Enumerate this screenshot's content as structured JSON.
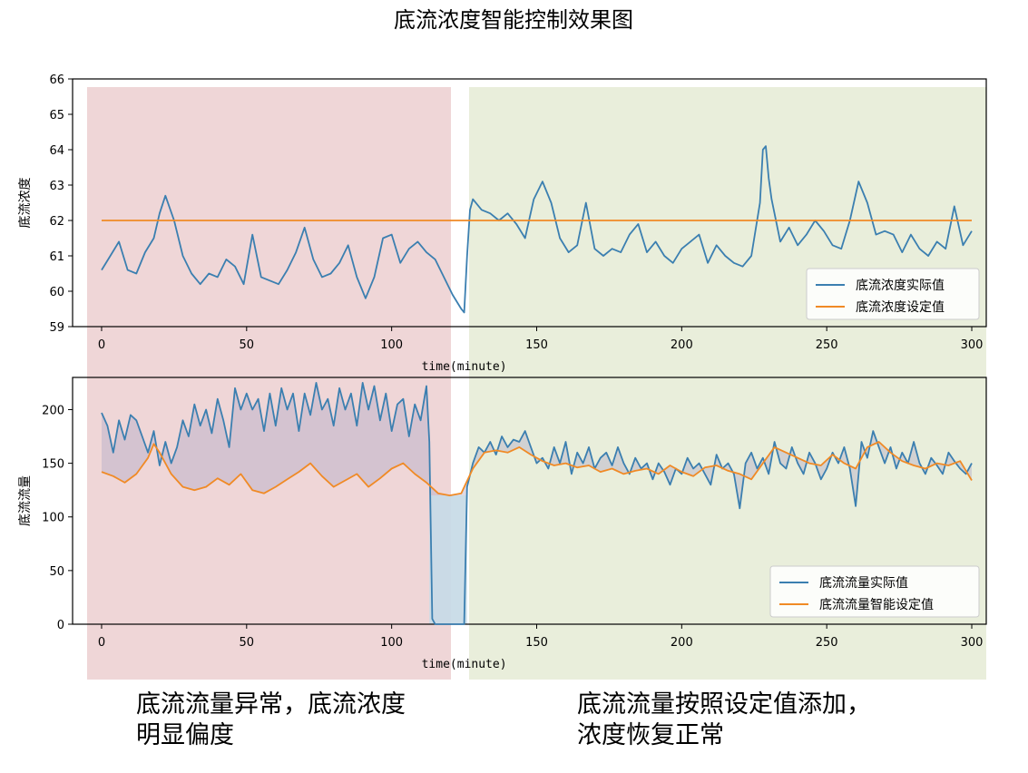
{
  "title": "底流浓度智能控制效果图",
  "captions": {
    "left_line1": "底流流量异常，底流浓度",
    "left_line2": "明显偏度",
    "right_line1": "底流流量按照设定值添加，",
    "right_line2": "浓度恢复正常"
  },
  "colors": {
    "actual": "#3b7fb0",
    "setpoint": "#f08a25",
    "region_left": "#efd6d7",
    "region_right": "#e9eedb",
    "fill_diff": "#b3adc8",
    "fill_drop": "#c9dde8"
  },
  "chart_data": [
    {
      "type": "line",
      "ylabel": "底流浓度",
      "xlabel": "time(minute)",
      "xlim": [
        -10,
        305
      ],
      "ylim": [
        59,
        66
      ],
      "xticks": [
        0,
        50,
        100,
        150,
        200,
        250,
        300
      ],
      "yticks": [
        59,
        60,
        61,
        62,
        63,
        64,
        65,
        66
      ],
      "legend_position": "lower-right",
      "series": [
        {
          "name": "底流浓度实际值",
          "x": [
            0,
            3,
            6,
            9,
            12,
            15,
            18,
            20,
            22,
            25,
            28,
            31,
            34,
            37,
            40,
            43,
            46,
            49,
            52,
            55,
            58,
            61,
            64,
            67,
            70,
            73,
            76,
            79,
            82,
            85,
            88,
            91,
            94,
            97,
            100,
            103,
            106,
            109,
            112,
            115,
            118,
            121,
            124,
            125,
            126,
            127,
            128,
            131,
            134,
            137,
            140,
            143,
            146,
            149,
            152,
            155,
            158,
            161,
            164,
            167,
            170,
            173,
            176,
            179,
            182,
            185,
            188,
            191,
            194,
            197,
            200,
            203,
            206,
            209,
            212,
            215,
            218,
            221,
            224,
            227,
            228,
            229,
            230,
            231,
            234,
            237,
            240,
            243,
            246,
            249,
            252,
            255,
            258,
            261,
            264,
            267,
            270,
            273,
            276,
            279,
            282,
            285,
            288,
            291,
            294,
            297,
            300
          ],
          "values": [
            60.6,
            61.0,
            61.4,
            60.6,
            60.5,
            61.1,
            61.5,
            62.2,
            62.7,
            62.0,
            61.0,
            60.5,
            60.2,
            60.5,
            60.4,
            60.9,
            60.7,
            60.2,
            61.6,
            60.4,
            60.3,
            60.2,
            60.6,
            61.1,
            61.8,
            60.9,
            60.4,
            60.5,
            60.8,
            61.3,
            60.4,
            59.8,
            60.4,
            61.5,
            61.6,
            60.8,
            61.2,
            61.4,
            61.1,
            60.9,
            60.4,
            59.9,
            59.5,
            59.4,
            61.0,
            62.3,
            62.6,
            62.3,
            62.2,
            62.0,
            62.2,
            61.9,
            61.5,
            62.6,
            63.1,
            62.5,
            61.5,
            61.1,
            61.3,
            62.5,
            61.2,
            61.0,
            61.2,
            61.1,
            61.6,
            61.9,
            61.1,
            61.4,
            61.0,
            60.8,
            61.2,
            61.4,
            61.6,
            60.8,
            61.3,
            61.0,
            60.8,
            60.7,
            61.0,
            62.5,
            64.0,
            64.1,
            63.2,
            62.6,
            61.4,
            61.8,
            61.3,
            61.6,
            62.0,
            61.7,
            61.3,
            61.2,
            62.0,
            63.1,
            62.5,
            61.6,
            61.7,
            61.6,
            61.1,
            61.6,
            61.2,
            61.0,
            61.4,
            61.2,
            62.4,
            61.3,
            61.7
          ]
        },
        {
          "name": "底流浓度设定值",
          "x": [
            0,
            300
          ],
          "values": [
            62.0,
            62.0
          ]
        }
      ]
    },
    {
      "type": "line",
      "ylabel": "底流流量",
      "xlabel": "time(minute)",
      "xlim": [
        -10,
        305
      ],
      "ylim": [
        0,
        230
      ],
      "xticks": [
        0,
        50,
        100,
        150,
        200,
        250,
        300
      ],
      "yticks": [
        0,
        50,
        100,
        150,
        200
      ],
      "legend_position": "lower-right",
      "series": [
        {
          "name": "底流流量实际值",
          "x": [
            0,
            2,
            4,
            6,
            8,
            10,
            12,
            14,
            16,
            18,
            20,
            22,
            24,
            26,
            28,
            30,
            32,
            34,
            36,
            38,
            40,
            42,
            44,
            46,
            48,
            50,
            52,
            54,
            56,
            58,
            60,
            62,
            64,
            66,
            68,
            70,
            72,
            74,
            76,
            78,
            80,
            82,
            84,
            86,
            88,
            90,
            92,
            94,
            96,
            98,
            100,
            102,
            104,
            106,
            108,
            110,
            112,
            113,
            114,
            115,
            116,
            118,
            120,
            122,
            124,
            125,
            126,
            128,
            130,
            132,
            134,
            136,
            138,
            140,
            142,
            144,
            146,
            148,
            150,
            152,
            154,
            156,
            158,
            160,
            162,
            164,
            166,
            168,
            170,
            172,
            174,
            176,
            178,
            180,
            182,
            184,
            186,
            188,
            190,
            192,
            194,
            196,
            198,
            200,
            202,
            204,
            206,
            208,
            210,
            212,
            214,
            216,
            218,
            220,
            222,
            224,
            226,
            228,
            230,
            232,
            234,
            236,
            238,
            240,
            242,
            244,
            246,
            248,
            250,
            252,
            254,
            256,
            258,
            260,
            262,
            264,
            266,
            268,
            270,
            272,
            274,
            276,
            278,
            280,
            282,
            284,
            286,
            288,
            290,
            292,
            294,
            296,
            298,
            300
          ],
          "values": [
            197,
            185,
            160,
            190,
            172,
            195,
            190,
            175,
            160,
            180,
            148,
            170,
            150,
            165,
            190,
            175,
            205,
            185,
            200,
            178,
            210,
            190,
            165,
            220,
            200,
            215,
            200,
            210,
            180,
            215,
            185,
            220,
            200,
            215,
            180,
            215,
            195,
            225,
            200,
            210,
            185,
            220,
            200,
            215,
            185,
            225,
            200,
            222,
            190,
            215,
            180,
            205,
            210,
            175,
            205,
            190,
            222,
            170,
            5,
            0,
            0,
            0,
            0,
            0,
            0,
            0,
            128,
            150,
            165,
            160,
            170,
            158,
            175,
            165,
            172,
            170,
            180,
            165,
            150,
            155,
            145,
            165,
            150,
            170,
            140,
            160,
            150,
            165,
            145,
            155,
            160,
            148,
            165,
            150,
            140,
            155,
            145,
            150,
            135,
            150,
            142,
            130,
            145,
            140,
            155,
            145,
            150,
            140,
            130,
            158,
            145,
            150,
            140,
            108,
            150,
            160,
            145,
            155,
            140,
            170,
            150,
            145,
            165,
            150,
            140,
            160,
            150,
            135,
            145,
            160,
            150,
            165,
            145,
            110,
            170,
            155,
            180,
            165,
            150,
            165,
            145,
            160,
            150,
            170,
            150,
            140,
            155,
            148,
            140,
            160,
            152,
            145,
            140,
            150
          ],
          "fill_to": "setpoint"
        },
        {
          "name": "底流流量智能设定值",
          "x": [
            0,
            4,
            8,
            12,
            16,
            18,
            20,
            24,
            28,
            32,
            36,
            40,
            44,
            48,
            52,
            56,
            60,
            64,
            68,
            72,
            76,
            80,
            84,
            88,
            92,
            96,
            100,
            104,
            108,
            112,
            116,
            120,
            124,
            128,
            132,
            136,
            140,
            144,
            148,
            152,
            156,
            160,
            164,
            168,
            172,
            176,
            180,
            184,
            188,
            192,
            196,
            200,
            204,
            208,
            212,
            216,
            220,
            224,
            228,
            232,
            236,
            240,
            244,
            248,
            252,
            256,
            260,
            264,
            268,
            272,
            276,
            280,
            284,
            288,
            292,
            296,
            300
          ],
          "values": [
            142,
            138,
            132,
            140,
            155,
            168,
            160,
            140,
            128,
            125,
            128,
            136,
            130,
            140,
            125,
            122,
            128,
            135,
            142,
            150,
            138,
            128,
            134,
            140,
            128,
            136,
            145,
            150,
            140,
            132,
            122,
            120,
            122,
            145,
            160,
            162,
            160,
            165,
            158,
            152,
            148,
            150,
            146,
            148,
            142,
            145,
            140,
            143,
            145,
            140,
            148,
            142,
            138,
            146,
            148,
            143,
            140,
            135,
            150,
            165,
            160,
            155,
            150,
            148,
            158,
            150,
            145,
            165,
            170,
            160,
            152,
            148,
            145,
            150,
            148,
            152,
            134
          ]
        }
      ]
    }
  ]
}
